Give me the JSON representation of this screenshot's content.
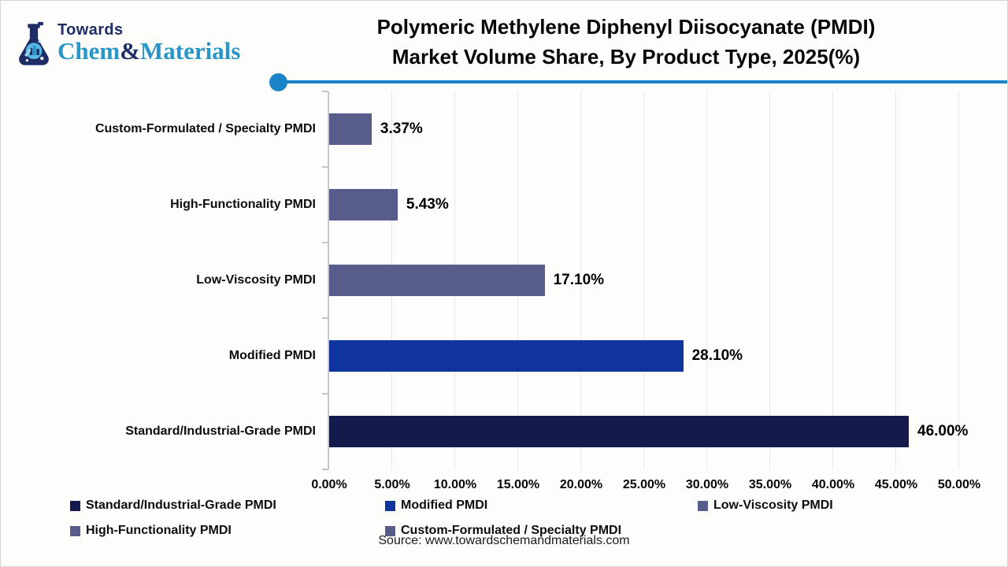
{
  "logo": {
    "brand_top": "Towards",
    "brand_chem": "Chem",
    "brand_amp": "&",
    "brand_materials": "Materials",
    "navy": "#1e2d63",
    "light_blue": "#2996c9"
  },
  "header": {
    "title_line1": "Polymeric Methylene Diphenyl Diisocyanate (PMDI)",
    "title_line2": "Market Volume Share, By Product Type, 2025(%)",
    "divider_color": "#1b84c8"
  },
  "chart_data": {
    "type": "bar",
    "orientation": "horizontal",
    "title": "Polymeric Methylene Diphenyl Diisocyanate (PMDI) Market Volume Share, By Product Type, 2025(%)",
    "categories": [
      "Custom-Formulated / Specialty PMDI",
      "High-Functionality PMDI",
      "Low-Viscosity PMDI",
      "Modified PMDI",
      "Standard/Industrial-Grade PMDI"
    ],
    "values": [
      3.37,
      5.43,
      17.1,
      28.1,
      46.0
    ],
    "value_labels": [
      "3.37%",
      "5.43%",
      "17.10%",
      "28.10%",
      "46.00%"
    ],
    "bar_colors": [
      "#575c8b",
      "#575c8b",
      "#575c8b",
      "#10349e",
      "#151a4d"
    ],
    "xlabel": "",
    "ylabel": "",
    "xlim": [
      0,
      50
    ],
    "x_tick_step": 5,
    "x_tick_labels": [
      "0.00%",
      "5.00%",
      "10.00%",
      "15.00%",
      "20.00%",
      "25.00%",
      "30.00%",
      "35.00%",
      "40.00%",
      "45.00%",
      "50.00%"
    ],
    "grid": true,
    "legend_position": "bottom",
    "legend_rows": [
      [
        {
          "label": "Standard/Industrial-Grade PMDI",
          "color": "#151a4d"
        },
        {
          "label": "Modified PMDI",
          "color": "#10349e"
        },
        {
          "label": "Low-Viscosity PMDI",
          "color": "#575c8b"
        }
      ],
      [
        {
          "label": "High-Functionality PMDI",
          "color": "#575c8b"
        },
        {
          "label": "Custom-Formulated / Specialty PMDI",
          "color": "#575c8b"
        }
      ]
    ]
  },
  "footer": {
    "source": "Source: www.towardschemandmaterials.com"
  }
}
